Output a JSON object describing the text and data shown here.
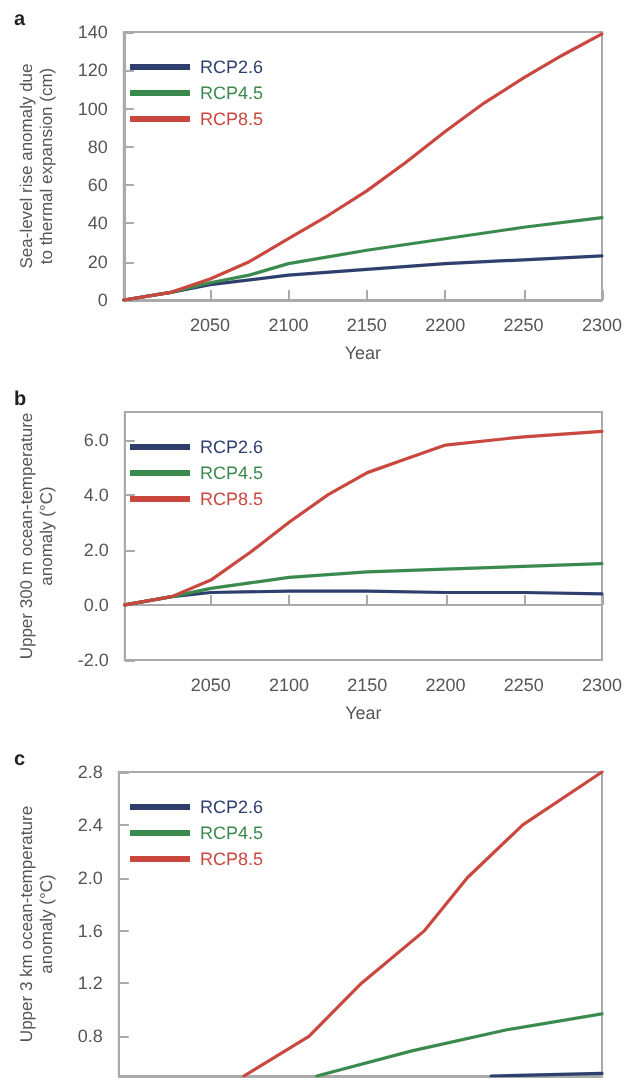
{
  "chart_data": [
    {
      "type": "line",
      "title": "a",
      "xlabel": "Year",
      "ylabel": "Sea-level rise anomaly due\nto thermal expansion (cm)",
      "xlim": [
        1995,
        2300
      ],
      "xticks": [
        2050,
        2100,
        2150,
        2200,
        2250,
        2300
      ],
      "ylim": [
        0,
        140
      ],
      "yticks": [
        0,
        20,
        40,
        60,
        80,
        100,
        120,
        140
      ],
      "legend": "top left",
      "marker": "none",
      "line_style": "solid",
      "series": [
        {
          "name": "RCP2.6",
          "color": "#2e3f6e",
          "x": [
            1995,
            2025,
            2050,
            2100,
            2150,
            2200,
            2250,
            2300
          ],
          "values": [
            0,
            4,
            8,
            13,
            16,
            19,
            21,
            23
          ]
        },
        {
          "name": "RCP4.5",
          "color": "#3a8a4e",
          "x": [
            1995,
            2025,
            2050,
            2075,
            2100,
            2150,
            2200,
            2250,
            2300
          ],
          "values": [
            0,
            4,
            9,
            13,
            19,
            26,
            32,
            38,
            43
          ]
        },
        {
          "name": "RCP8.5",
          "color": "#c9473f",
          "x": [
            1995,
            2025,
            2050,
            2075,
            2100,
            2125,
            2150,
            2175,
            2200,
            2225,
            2250,
            2275,
            2300
          ],
          "values": [
            0,
            4,
            11,
            20,
            32,
            44,
            57,
            72,
            88,
            103,
            116,
            128,
            139
          ]
        }
      ]
    },
    {
      "type": "line",
      "title": "b",
      "xlabel": "Year",
      "ylabel": "Upper 300 m ocean-temperature\nanomaly (°C)",
      "xlim": [
        1995,
        2300
      ],
      "xticks": [
        2050,
        2100,
        2150,
        2200,
        2250,
        2300
      ],
      "ylim": [
        -2,
        7
      ],
      "yticks": [
        {
          "value": -2,
          "label": "-2.0"
        },
        {
          "value": 0,
          "label": "0.0"
        },
        {
          "value": 2,
          "label": "2.0"
        },
        {
          "value": 4,
          "label": "4.0"
        },
        {
          "value": 6,
          "label": "6.0"
        }
      ],
      "legend": "top left",
      "marker": "none",
      "line_style": "solid",
      "series": [
        {
          "name": "RCP2.6",
          "color": "#2e3f6e",
          "x": [
            1995,
            2025,
            2050,
            2100,
            2150,
            2200,
            2250,
            2300
          ],
          "values": [
            0,
            0.3,
            0.45,
            0.5,
            0.5,
            0.45,
            0.45,
            0.4
          ]
        },
        {
          "name": "RCP4.5",
          "color": "#3a8a4e",
          "x": [
            1995,
            2025,
            2050,
            2075,
            2100,
            2150,
            2200,
            2250,
            2300
          ],
          "values": [
            0,
            0.3,
            0.6,
            0.8,
            1.0,
            1.2,
            1.3,
            1.4,
            1.5
          ]
        },
        {
          "name": "RCP8.5",
          "color": "#c9473f",
          "x": [
            1995,
            2025,
            2050,
            2075,
            2100,
            2125,
            2150,
            2175,
            2200,
            2250,
            2300
          ],
          "values": [
            0,
            0.3,
            0.9,
            1.9,
            3.0,
            4.0,
            4.8,
            5.3,
            5.8,
            6.1,
            6.3
          ]
        }
      ]
    },
    {
      "type": "line",
      "title": "c",
      "ylabel": "Upper 3 km ocean-temperature\nanomaly (°C)",
      "xlim": [
        1995,
        2300
      ],
      "ylim": [
        0.5,
        2.8
      ],
      "yticks": [
        {
          "value": 0.8,
          "label": "0.8"
        },
        {
          "value": 1.2,
          "label": "1.2"
        },
        {
          "value": 1.6,
          "label": "1.6"
        },
        {
          "value": 2.0,
          "label": "2.0"
        },
        {
          "value": 2.4,
          "label": "2.4"
        },
        {
          "value": 2.8,
          "label": "2.8"
        }
      ],
      "tick_labels": "y",
      "legend": "top left",
      "marker": "none",
      "line_style": "solid",
      "series": [
        {
          "name": "RCP2.6",
          "color": "#2e3f6e",
          "x": [
            2230,
            2300
          ],
          "values": [
            0.5,
            0.52
          ]
        },
        {
          "name": "RCP4.5",
          "color": "#3a8a4e",
          "x": [
            2120,
            2180,
            2240,
            2300
          ],
          "values": [
            0.5,
            0.69,
            0.85,
            0.97
          ]
        },
        {
          "name": "RCP8.5",
          "color": "#c9473f",
          "x": [
            2074,
            2115,
            2148,
            2188,
            2215,
            2250,
            2300
          ],
          "values": [
            0.5,
            0.8,
            1.2,
            1.6,
            2.0,
            2.4,
            2.8
          ]
        }
      ]
    }
  ]
}
